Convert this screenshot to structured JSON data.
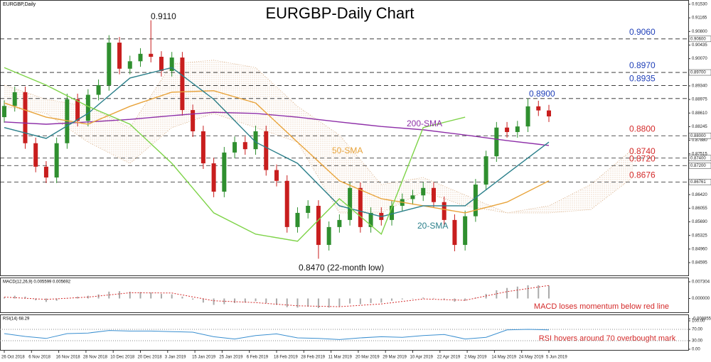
{
  "chart_data": {
    "type": "candlestick",
    "title": "EURGBP-Daily Chart",
    "symbol_label": "EURGBP,Daily",
    "ylim": [
      0.84595,
      0.9153
    ],
    "yticks": [
      {
        "value": 0.9153,
        "label": "0.91530"
      },
      0.91165,
      {
        "value": 0.908,
        "label": "0.90800"
      },
      0.90435,
      {
        "value": 0.9007,
        "label": "0.90070"
      },
      0.89705,
      {
        "value": 0.8934,
        "label": "0.89340"
      },
      0.88975,
      {
        "value": 0.8861,
        "label": "0.88610"
      },
      0.88245,
      {
        "value": 0.8788,
        "label": "0.87880"
      },
      0.87515,
      {
        "value": 0.8715,
        "label": "0.87150"
      },
      0.86785,
      {
        "value": 0.8642,
        "label": "0.86420"
      },
      0.86055,
      {
        "value": 0.8569,
        "label": "0.85690"
      },
      0.85325,
      {
        "value": 0.8496,
        "label": "0.84960"
      },
      0.84595
    ],
    "date_ticks": [
      {
        "value": 0,
        "label": "26 Oct 2018"
      },
      {
        "value": 2.6,
        "label": "6 Nov 2018"
      },
      {
        "value": 5.2,
        "label": "16 Nov 2018"
      },
      {
        "value": 7.8,
        "label": "28 Nov 2018"
      },
      {
        "value": 10.4,
        "label": "10 Dec 2018"
      },
      {
        "value": 13,
        "label": "20 Dec 2018"
      },
      {
        "value": 15.6,
        "label": "3 Jan 2019"
      },
      {
        "value": 18.2,
        "label": "15 Jan 2019"
      },
      {
        "value": 20.8,
        "label": "25 Jan 2019"
      },
      {
        "value": 23.4,
        "label": "6 Feb 2019"
      },
      {
        "value": 26,
        "label": "18 Feb 2019"
      },
      {
        "value": 28.6,
        "label": "28 Feb 2019"
      },
      {
        "value": 31.2,
        "label": "11 Mar 2019"
      },
      {
        "value": 33.8,
        "label": "20 Mar 2019"
      },
      {
        "value": 36.4,
        "label": "29 Mar 2019"
      },
      {
        "value": 39,
        "label": "10 Apr 2019"
      },
      {
        "value": 41.6,
        "label": "22 Apr 2019"
      },
      {
        "value": 44.2,
        "label": "2 May 2019"
      },
      {
        "value": 46.8,
        "label": "14 May 2019"
      },
      {
        "value": 49.4,
        "label": "24 May 2019"
      },
      {
        "value": 52,
        "label": "5 Jun 2019"
      }
    ],
    "candles": {
      "up_color": "#2f8f2f",
      "down_color": "#c81e1e",
      "open": [
        0.885,
        0.888,
        0.8917,
        0.878,
        0.8717,
        0.8688,
        0.878,
        0.8898,
        0.884,
        0.891,
        0.8936,
        0.905,
        0.898,
        0.9,
        0.902,
        0.9012,
        0.8974,
        0.901,
        0.8869,
        0.8812,
        0.8726,
        0.865,
        0.8755,
        0.8783,
        0.8764,
        0.8812,
        0.8708,
        0.8679,
        0.8555,
        0.8593,
        0.8612,
        0.8507,
        0.8555,
        0.8574,
        0.866,
        0.8555,
        0.8593,
        0.8574,
        0.8612,
        0.863,
        0.864,
        0.866,
        0.8622,
        0.8574,
        0.8507,
        0.8584,
        0.8669,
        0.8745,
        0.8822,
        0.881,
        0.8825,
        0.8879,
        0.8868
      ],
      "high": [
        0.8895,
        0.8932,
        0.8932,
        0.8795,
        0.8732,
        0.8795,
        0.8913,
        0.8913,
        0.8925,
        0.8951,
        0.907,
        0.9065,
        0.9015,
        0.9035,
        0.911,
        0.9027,
        0.9025,
        0.9025,
        0.8884,
        0.8827,
        0.8741,
        0.877,
        0.8798,
        0.8798,
        0.8827,
        0.8827,
        0.8723,
        0.8694,
        0.8608,
        0.8627,
        0.8627,
        0.857,
        0.8589,
        0.8675,
        0.8675,
        0.8608,
        0.8608,
        0.8627,
        0.8645,
        0.8655,
        0.8675,
        0.8675,
        0.8637,
        0.8589,
        0.8599,
        0.8684,
        0.876,
        0.8837,
        0.8837,
        0.884,
        0.89,
        0.8894,
        0.8883
      ],
      "low": [
        0.8835,
        0.8865,
        0.8765,
        0.8702,
        0.8673,
        0.8673,
        0.8765,
        0.8825,
        0.8825,
        0.8895,
        0.8921,
        0.8965,
        0.8965,
        0.8985,
        0.8997,
        0.8959,
        0.8959,
        0.8854,
        0.8797,
        0.8711,
        0.8635,
        0.8635,
        0.874,
        0.8749,
        0.8749,
        0.8693,
        0.8664,
        0.854,
        0.854,
        0.8578,
        0.847,
        0.8492,
        0.854,
        0.8559,
        0.854,
        0.854,
        0.8559,
        0.8559,
        0.8597,
        0.8615,
        0.8625,
        0.8607,
        0.8559,
        0.849,
        0.8492,
        0.8569,
        0.8654,
        0.873,
        0.8795,
        0.8795,
        0.881,
        0.8853,
        0.8837
      ],
      "close": [
        0.888,
        0.8917,
        0.878,
        0.8717,
        0.8688,
        0.878,
        0.8898,
        0.884,
        0.891,
        0.8936,
        0.905,
        0.898,
        0.9,
        0.902,
        0.9012,
        0.8974,
        0.901,
        0.8869,
        0.8812,
        0.8726,
        0.865,
        0.8755,
        0.8783,
        0.8764,
        0.8812,
        0.8708,
        0.8679,
        0.8555,
        0.8593,
        0.8612,
        0.8507,
        0.8555,
        0.8574,
        0.866,
        0.8555,
        0.8593,
        0.8574,
        0.8612,
        0.863,
        0.864,
        0.866,
        0.8622,
        0.8574,
        0.8507,
        0.8584,
        0.8669,
        0.8745,
        0.8822,
        0.881,
        0.8825,
        0.8879,
        0.8868,
        0.8852
      ]
    },
    "cloud": {
      "color": "#d4a679",
      "x": [
        0,
        4,
        8,
        12,
        16,
        20,
        24,
        28,
        32,
        36,
        40,
        44,
        48,
        52,
        56,
        60
      ],
      "upper": [
        0.8936,
        0.8898,
        0.8879,
        0.8822,
        0.8993,
        0.9003,
        0.8983,
        0.8879,
        0.8802,
        0.8669,
        0.8688,
        0.8641,
        0.8593,
        0.8612,
        0.8669,
        0.8764
      ],
      "lower": [
        0.8879,
        0.886,
        0.8783,
        0.8726,
        0.8822,
        0.886,
        0.8822,
        0.8783,
        0.8593,
        0.8593,
        0.865,
        0.8612,
        0.8593,
        0.8593,
        0.8602,
        0.8688
      ]
    },
    "series": [
      {
        "name": "200-SMA",
        "color": "#8e2fa8",
        "x": [
          0,
          4,
          8,
          12,
          16,
          20,
          24,
          28,
          32,
          36,
          40,
          44,
          48,
          52
        ],
        "values": [
          0.8837,
          0.8831,
          0.8837,
          0.8844,
          0.8854,
          0.8863,
          0.886,
          0.885,
          0.8837,
          0.8825,
          0.8816,
          0.8802,
          0.8787,
          0.8774
        ]
      },
      {
        "name": "50-SMA",
        "color": "#e8a33a",
        "x": [
          0,
          4,
          8,
          12,
          16,
          20,
          24,
          28,
          32,
          36,
          40,
          44,
          48,
          52
        ],
        "values": [
          0.8888,
          0.885,
          0.8831,
          0.8879,
          0.8917,
          0.8921,
          0.8888,
          0.8783,
          0.8679,
          0.8631,
          0.8612,
          0.8593,
          0.8622,
          0.8679
        ]
      },
      {
        "name": "20-SMA",
        "color": "#2a7f8a",
        "x": [
          0,
          4,
          8,
          12,
          16,
          20,
          24,
          28,
          32,
          36,
          40,
          44,
          48,
          52
        ],
        "values": [
          0.8822,
          0.8793,
          0.886,
          0.8955,
          0.8983,
          0.8898,
          0.8783,
          0.8726,
          0.8612,
          0.8583,
          0.8612,
          0.8612,
          0.8698,
          0.8783
        ]
      },
      {
        "color": "#7ed348",
        "x": [
          0,
          4,
          8,
          12,
          16,
          20,
          24,
          28,
          32,
          36,
          40,
          44
        ],
        "values": [
          0.8983,
          0.8936,
          0.8879,
          0.8831,
          0.8726,
          0.8593,
          0.8536,
          0.8517,
          0.8631,
          0.8536,
          0.8822,
          0.885
        ]
      }
    ],
    "levels": [
      {
        "value": 0.906,
        "label": "0.9060",
        "axis_label": "0.90600",
        "color": "#1f3fb8"
      },
      {
        "value": 0.897,
        "label": "0.8970",
        "axis_label": "0.89700",
        "color": "#1f3fb8"
      },
      {
        "value": 0.8935,
        "label": "0.8935",
        "color": "#1f3fb8"
      },
      {
        "value": 0.89,
        "color": "#1f3fb8"
      },
      {
        "value": 0.88,
        "label": "0.8800",
        "axis_label": "0.88000",
        "color": "#d42a2a"
      },
      {
        "value": 0.874,
        "label": "0.8740",
        "axis_label": "0.87400",
        "color": "#d42a2a"
      },
      {
        "value": 0.872,
        "label": "0.8720",
        "axis_label": "0.87200",
        "color": "#d42a2a"
      },
      {
        "value": 0.8676,
        "label": "0.8676",
        "axis_label": "0.86761",
        "color": "#d42a2a"
      }
    ],
    "annotations": [
      "0.9110",
      "0.8900",
      "0.8470 (22-month low)"
    ],
    "macd": {
      "label": "MACD(12,26,9) 0.005599 0.005692",
      "ylim": [
        -0.008855,
        0.007304
      ],
      "yticks": [
        {
          "value": 0.007304,
          "label": "0.007304"
        },
        {
          "value": 0,
          "label": "0.000000"
        },
        {
          "value": -0.008855,
          "label": "-0.008855"
        }
      ],
      "histogram": [
        0.0005,
        0.0012,
        0.0008,
        -0.0008,
        -0.0015,
        -0.001,
        0.0002,
        0.0008,
        0.0012,
        0.0018,
        0.003,
        0.0032,
        0.003,
        0.0028,
        0.0026,
        0.002,
        0.0018,
        0.0008,
        -0.0005,
        -0.0018,
        -0.0028,
        -0.0025,
        -0.002,
        -0.0018,
        -0.0012,
        -0.002,
        -0.0028,
        -0.0038,
        -0.004,
        -0.0036,
        -0.0042,
        -0.004,
        -0.0035,
        -0.0022,
        -0.0025,
        -0.002,
        -0.0018,
        -0.001,
        -0.0004,
        0.0,
        0.0004,
        0.0002,
        -0.0006,
        -0.0014,
        -0.001,
        0.0004,
        0.002,
        0.0036,
        0.0046,
        0.0052,
        0.0058,
        0.0058,
        0.0056
      ],
      "signal": {
        "color": "#d42a2a",
        "x": [
          0,
          4,
          8,
          12,
          16,
          20,
          24,
          28,
          32,
          36,
          40,
          44,
          48,
          52
        ],
        "values": [
          0.0006,
          -0.0004,
          0.0006,
          0.0025,
          0.0024,
          -0.001,
          -0.0018,
          -0.0032,
          -0.0036,
          -0.0024,
          -0.0002,
          -0.0008,
          0.003,
          0.0057
        ]
      },
      "note": "MACD loses momentum below red line"
    },
    "rsi": {
      "label": "RSI(14) 68.29",
      "color": "#3a8fd0",
      "ylim": [
        0,
        100
      ],
      "yticks": [
        {
          "value": 100,
          "label": "100.00"
        },
        {
          "value": 70,
          "label": "70.00"
        },
        {
          "value": 30,
          "label": "30.00"
        },
        {
          "value": 0,
          "label": "0.00"
        }
      ],
      "x": [
        0,
        2,
        4,
        6,
        8,
        10,
        12,
        14,
        16,
        18,
        20,
        22,
        24,
        26,
        28,
        30,
        32,
        34,
        36,
        38,
        40,
        42,
        44,
        46,
        48,
        50,
        52
      ],
      "values": [
        55,
        45,
        38,
        55,
        57,
        66,
        64,
        64,
        62,
        60,
        44,
        36,
        48,
        54,
        40,
        38,
        34,
        40,
        44,
        42,
        48,
        52,
        36,
        42,
        68,
        70,
        68
      ],
      "note": "RSI hovers around 70 overbought mark"
    }
  }
}
